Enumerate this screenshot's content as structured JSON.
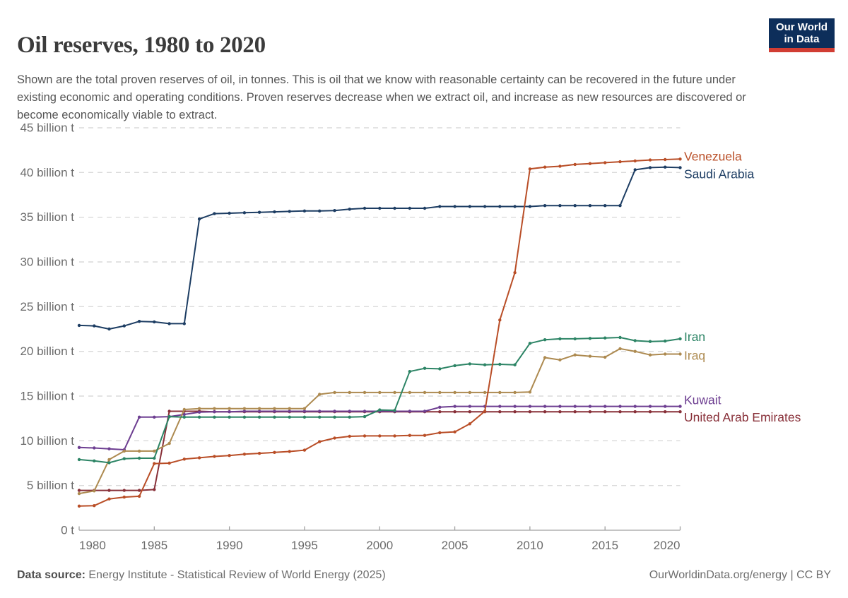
{
  "header": {
    "title": "Oil reserves, 1980 to 2020",
    "logo": {
      "line1": "Our World",
      "line2": "in Data",
      "bg_color": "#0d2e5a",
      "accent_color": "#d13d33"
    }
  },
  "subtitle": {
    "text": "Shown are the total proven reserves of oil, in tonnes. This is oil that we know with reasonable certainty can be recovered in the future under existing economic and operating conditions. Proven reserves decrease when we extract oil, and increase as new resources are discovered or become economically viable to extract."
  },
  "footer": {
    "source_label": "Data source:",
    "source_value": " Energy Institute - Statistical Review of World Energy (2025)",
    "credit": "OurWorldinData.org/energy | CC BY"
  },
  "chart_data": {
    "type": "line",
    "title": "Oil reserves, 1980 to 2020",
    "xlabel": "",
    "ylabel": "",
    "unit": "billion tonnes",
    "xlim": [
      1980,
      2020
    ],
    "ylim": [
      0,
      45
    ],
    "grid": "horizontal-dashed",
    "legend_position": "right-end-labels",
    "x": [
      1980,
      1981,
      1982,
      1983,
      1984,
      1985,
      1986,
      1987,
      1988,
      1989,
      1990,
      1991,
      1992,
      1993,
      1994,
      1995,
      1996,
      1997,
      1998,
      1999,
      2000,
      2001,
      2002,
      2003,
      2004,
      2005,
      2006,
      2007,
      2008,
      2009,
      2010,
      2011,
      2012,
      2013,
      2014,
      2015,
      2016,
      2017,
      2018,
      2019,
      2020
    ],
    "x_ticks": [
      1980,
      1985,
      1990,
      1995,
      2000,
      2005,
      2010,
      2015,
      2020
    ],
    "y_ticks": [
      {
        "value": 0,
        "label": "0 t"
      },
      {
        "value": 5,
        "label": "5 billion t"
      },
      {
        "value": 10,
        "label": "10 billion t"
      },
      {
        "value": 15,
        "label": "15 billion t"
      },
      {
        "value": 20,
        "label": "20 billion t"
      },
      {
        "value": 25,
        "label": "25 billion t"
      },
      {
        "value": 30,
        "label": "30 billion t"
      },
      {
        "value": 35,
        "label": "35 billion t"
      },
      {
        "value": 40,
        "label": "40 billion t"
      },
      {
        "value": 45,
        "label": "45 billion t"
      }
    ],
    "series": [
      {
        "name": "Venezuela",
        "color": "#b94e27",
        "label_dy": -3,
        "values": [
          2.7,
          2.75,
          3.5,
          3.7,
          3.8,
          7.45,
          7.5,
          7.95,
          8.1,
          8.25,
          8.35,
          8.5,
          8.6,
          8.7,
          8.8,
          8.95,
          9.9,
          10.3,
          10.5,
          10.55,
          10.55,
          10.55,
          10.6,
          10.6,
          10.9,
          11.0,
          11.9,
          13.3,
          23.5,
          28.8,
          40.4,
          40.6,
          40.7,
          40.9,
          41.0,
          41.1,
          41.2,
          41.3,
          41.4,
          41.45,
          41.5
        ]
      },
      {
        "name": "Saudi Arabia",
        "color": "#1d3d63",
        "label_dy": 10,
        "values": [
          22.9,
          22.85,
          22.5,
          22.85,
          23.35,
          23.3,
          23.1,
          23.1,
          34.8,
          35.4,
          35.45,
          35.5,
          35.55,
          35.6,
          35.65,
          35.7,
          35.7,
          35.75,
          35.9,
          36.0,
          36.0,
          36.0,
          36.0,
          36.0,
          36.2,
          36.2,
          36.2,
          36.2,
          36.2,
          36.2,
          36.2,
          36.3,
          36.3,
          36.3,
          36.3,
          36.3,
          36.3,
          40.3,
          40.55,
          40.6,
          40.55
        ]
      },
      {
        "name": "Iran",
        "color": "#2c8465",
        "label_dy": -2,
        "values": [
          7.9,
          7.75,
          7.55,
          8.0,
          8.05,
          8.05,
          12.7,
          12.65,
          12.65,
          12.65,
          12.65,
          12.65,
          12.65,
          12.65,
          12.65,
          12.65,
          12.65,
          12.65,
          12.65,
          12.7,
          13.45,
          13.4,
          17.75,
          18.1,
          18.05,
          18.4,
          18.6,
          18.5,
          18.55,
          18.5,
          20.9,
          21.3,
          21.4,
          21.4,
          21.45,
          21.5,
          21.55,
          21.2,
          21.1,
          21.15,
          21.4
        ]
      },
      {
        "name": "Iraq",
        "color": "#ad8a50",
        "label_dy": 3,
        "values": [
          4.1,
          4.4,
          7.9,
          8.85,
          8.85,
          8.85,
          9.7,
          13.5,
          13.6,
          13.6,
          13.6,
          13.6,
          13.6,
          13.6,
          13.6,
          13.6,
          15.2,
          15.4,
          15.4,
          15.4,
          15.4,
          15.4,
          15.4,
          15.4,
          15.4,
          15.4,
          15.4,
          15.4,
          15.4,
          15.4,
          15.45,
          19.3,
          19.05,
          19.6,
          19.45,
          19.35,
          20.3,
          20.0,
          19.6,
          19.7,
          19.7
        ]
      },
      {
        "name": "Kuwait",
        "color": "#6d3e91",
        "label_dy": -8,
        "values": [
          9.25,
          9.2,
          9.1,
          9.0,
          12.65,
          12.65,
          12.7,
          12.95,
          13.2,
          13.25,
          13.25,
          13.3,
          13.3,
          13.3,
          13.3,
          13.3,
          13.3,
          13.3,
          13.3,
          13.3,
          13.3,
          13.3,
          13.3,
          13.3,
          13.75,
          13.85,
          13.85,
          13.85,
          13.85,
          13.85,
          13.85,
          13.85,
          13.85,
          13.85,
          13.85,
          13.85,
          13.85,
          13.85,
          13.85,
          13.85,
          13.85
        ]
      },
      {
        "name": "United Arab Emirates",
        "color": "#883039",
        "label_dy": 9,
        "values": [
          4.45,
          4.45,
          4.45,
          4.45,
          4.45,
          4.55,
          13.3,
          13.3,
          13.3,
          13.25,
          13.25,
          13.25,
          13.25,
          13.25,
          13.25,
          13.25,
          13.25,
          13.25,
          13.25,
          13.25,
          13.25,
          13.25,
          13.25,
          13.25,
          13.25,
          13.25,
          13.25,
          13.25,
          13.25,
          13.25,
          13.25,
          13.25,
          13.25,
          13.25,
          13.25,
          13.25,
          13.25,
          13.25,
          13.25,
          13.25,
          13.25
        ]
      }
    ]
  }
}
